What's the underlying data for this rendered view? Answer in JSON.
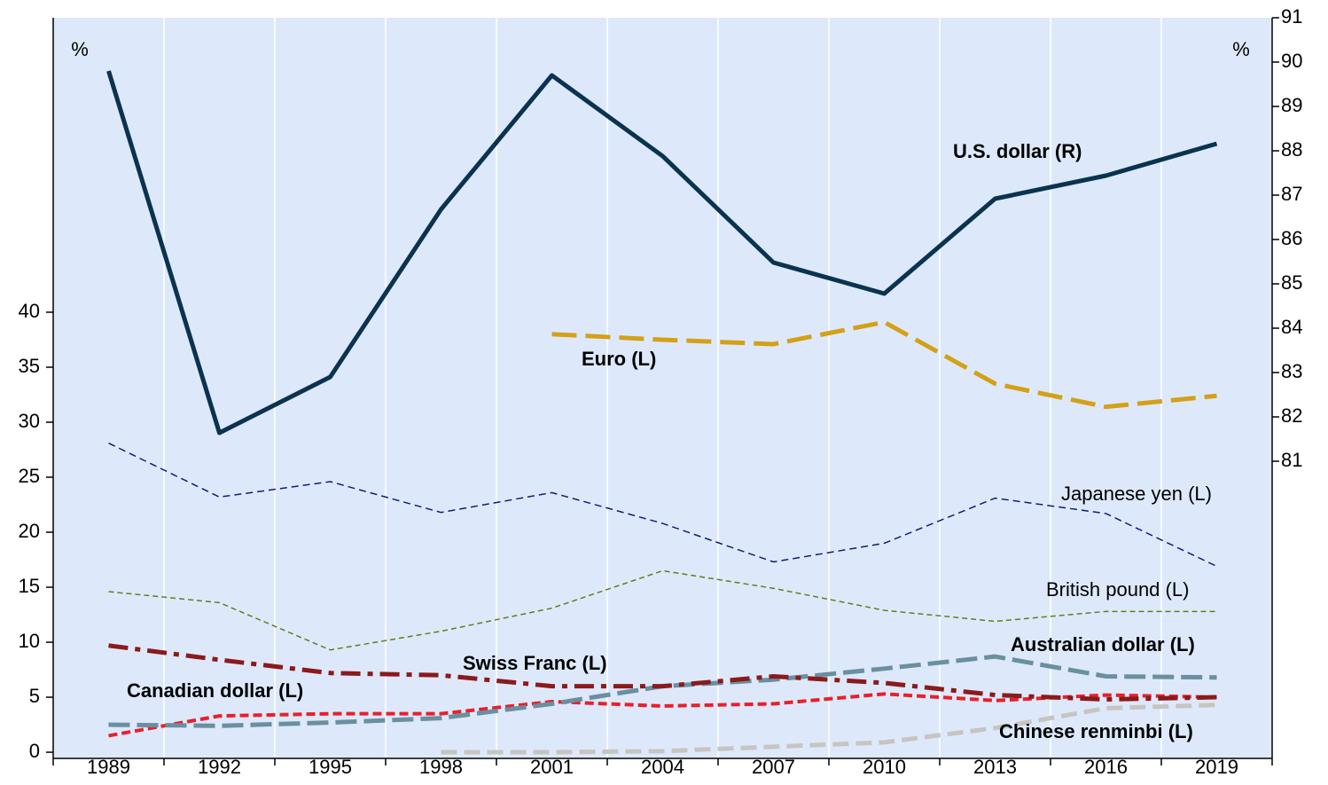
{
  "chart_data": {
    "type": "line",
    "x": [
      1989,
      1992,
      1995,
      1998,
      2001,
      2004,
      2007,
      2010,
      2013,
      2016,
      2019
    ],
    "xlim": [
      1987.5,
      2020.5
    ],
    "xticks": [
      1989,
      1992,
      1995,
      1998,
      2001,
      2004,
      2007,
      2010,
      2013,
      2016,
      2019
    ],
    "ylim": [
      -0.56,
      66.77
    ],
    "yticks": [
      0,
      5,
      10,
      15,
      20,
      25,
      30,
      35,
      40
    ],
    "y2lim": [
      74.3,
      91
    ],
    "y2ticks": [
      81,
      82,
      83,
      84,
      85,
      86,
      87,
      88,
      89,
      90,
      91
    ],
    "ylabel": "%",
    "y2label": "%",
    "grid": true,
    "series": [
      {
        "name": "U.S. dollar (R)",
        "axis": "y2",
        "color": "#0b3350",
        "label_color": "#0b3060",
        "values": [
          89.8,
          81.64,
          82.9,
          86.68,
          89.7,
          87.88,
          85.48,
          84.78,
          86.92,
          87.44,
          88.16
        ]
      },
      {
        "name": "Euro (L)",
        "color": "#d4a017",
        "label_color": "#d4a017",
        "values": [
          null,
          null,
          null,
          null,
          38.0,
          37.5,
          37.1,
          39.1,
          33.5,
          31.4,
          32.4
        ]
      },
      {
        "name": "Japanese yen (L)",
        "color": "#0f1f73",
        "label_color": "#000000",
        "values": [
          28.1,
          23.2,
          24.6,
          21.8,
          23.6,
          20.8,
          17.3,
          19.0,
          23.1,
          21.7,
          16.9
        ]
      },
      {
        "name": "British pound (L)",
        "color": "#6b7a1a",
        "label_color": "#000000",
        "values": [
          14.6,
          13.6,
          9.3,
          11.0,
          13.1,
          16.5,
          14.9,
          12.9,
          11.9,
          12.8,
          12.8
        ]
      },
      {
        "name": "Australian dollar (L)",
        "color": "#6a8fa0",
        "label_color": "#6a8fa0",
        "values": [
          2.5,
          2.4,
          2.7,
          3.1,
          4.4,
          6.0,
          6.6,
          7.6,
          8.7,
          6.9,
          6.8
        ]
      },
      {
        "name": "Swiss Franc (L)",
        "color": "#8b1a1a",
        "label_color": "#8b1a1a",
        "values": [
          9.7,
          8.4,
          7.2,
          7.0,
          6.0,
          6.0,
          6.9,
          6.3,
          5.2,
          4.8,
          5.0
        ]
      },
      {
        "name": "Canadian dollar (L)",
        "color": "#e8202a",
        "label_color": "#e8202a",
        "values": [
          1.5,
          3.3,
          3.5,
          3.5,
          4.6,
          4.2,
          4.4,
          5.3,
          4.7,
          5.2,
          5.0
        ]
      },
      {
        "name": "Chinese renminbi (L)",
        "color": "#c8c4c0",
        "label_color": "#b8b4b0",
        "values": [
          null,
          null,
          null,
          0.0,
          0.0,
          0.1,
          0.5,
          0.9,
          2.2,
          4.0,
          4.3
        ]
      }
    ]
  }
}
